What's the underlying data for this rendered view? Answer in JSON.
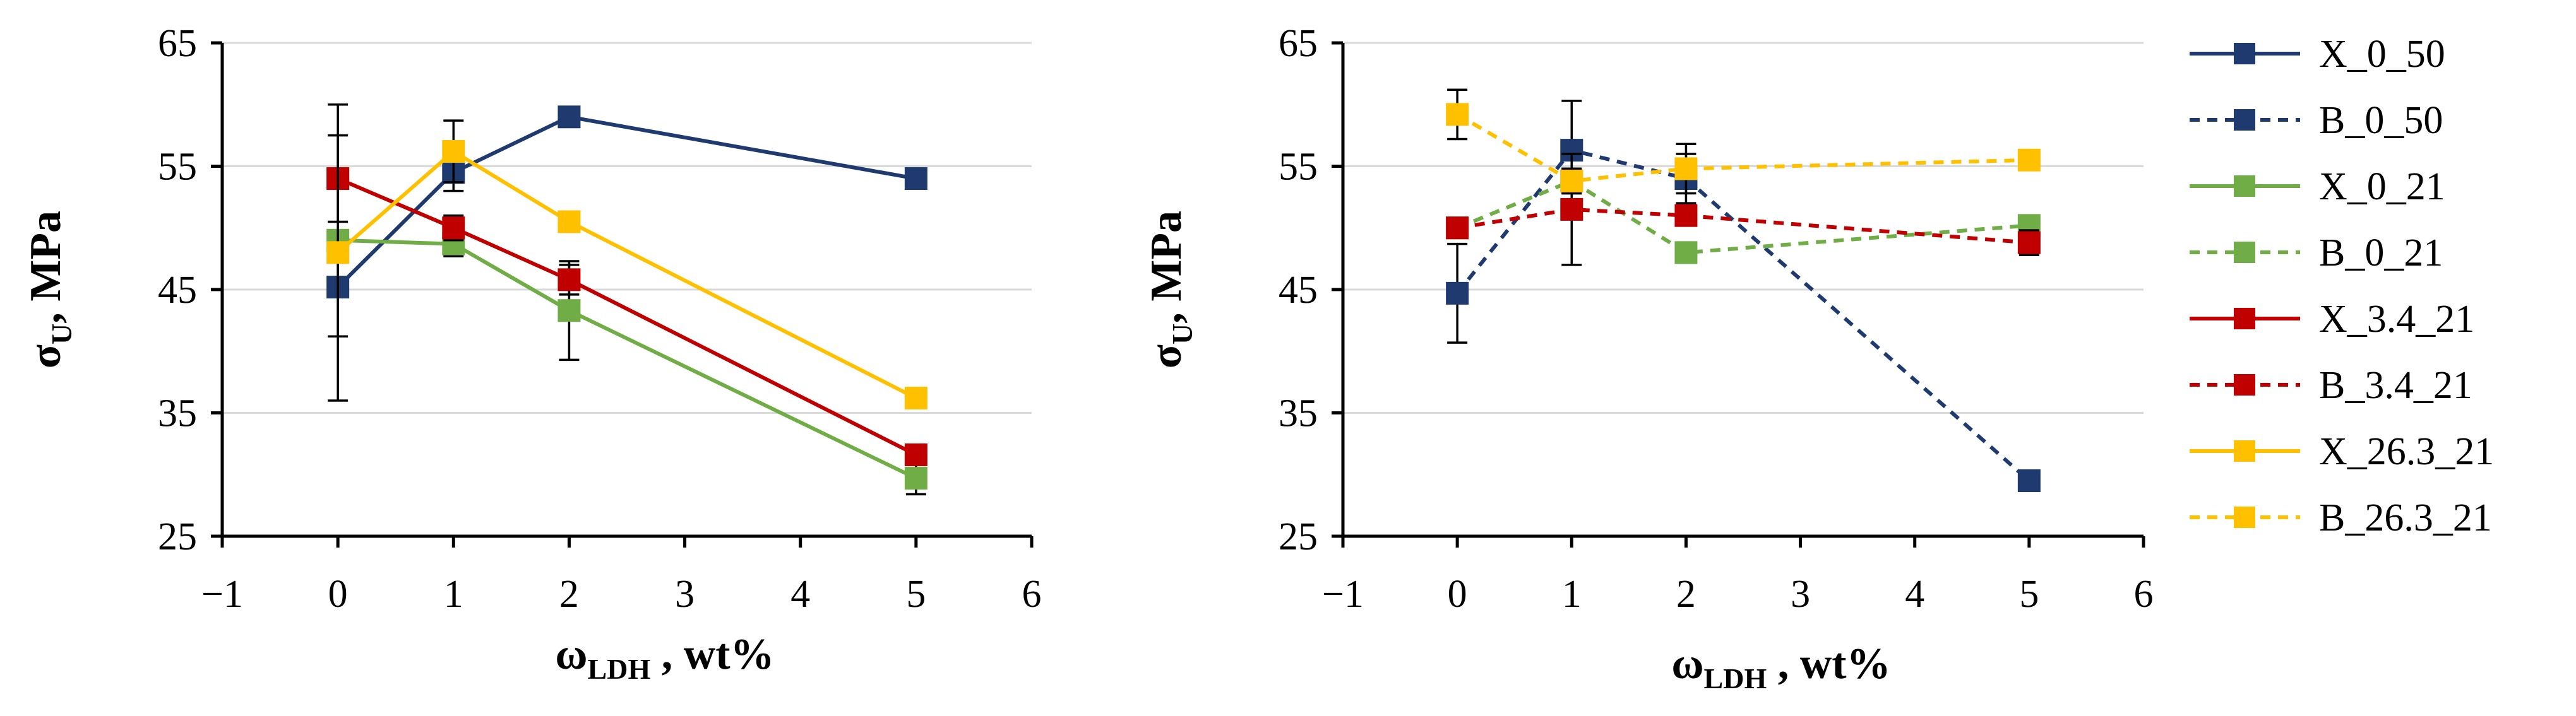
{
  "chart_data": [
    {
      "type": "line",
      "title": "",
      "xlabel": {
        "main": "ω",
        "sub": "LDH",
        "rest": " , wt%"
      },
      "ylabel": {
        "main": "σ",
        "sub": "U",
        "rest": ", MPa"
      },
      "xlim": [
        -1,
        6
      ],
      "ylim": [
        25,
        65
      ],
      "xticks": [
        -1,
        0,
        1,
        2,
        3,
        4,
        5,
        6
      ],
      "yticks": [
        25,
        35,
        45,
        55,
        65
      ],
      "grid": "horizontal",
      "series": [
        {
          "key": "X_0_50",
          "style": "solid",
          "color": "#1f3a6e",
          "x": [
            0,
            1,
            2,
            5
          ],
          "y": [
            45.2,
            54.5,
            59.0,
            54.0
          ],
          "err": [
            4,
            1.5,
            0.6,
            0.8
          ]
        },
        {
          "key": "X_0_21",
          "style": "solid",
          "color": "#70ad47",
          "x": [
            0,
            1,
            2,
            5
          ],
          "y": [
            49.0,
            48.7,
            43.3,
            29.7
          ],
          "err": [
            0.5,
            1.0,
            4.0,
            1.3
          ]
        },
        {
          "key": "X_3.4_21",
          "style": "solid",
          "color": "#c00000",
          "x": [
            0,
            1,
            2,
            5
          ],
          "y": [
            54.0,
            50.0,
            45.8,
            31.6
          ],
          "err": [
            3.5,
            1.0,
            1.2,
            0.6
          ]
        },
        {
          "key": "X_26.3_21",
          "style": "solid",
          "color": "#ffc000",
          "x": [
            0,
            1,
            2,
            5
          ],
          "y": [
            48.0,
            56.2,
            50.5,
            36.2
          ],
          "err": [
            12,
            2.5,
            0.6,
            0.6
          ]
        }
      ]
    },
    {
      "type": "line",
      "title": "",
      "xlabel": {
        "main": "ω",
        "sub": "LDH",
        "rest": " , wt%"
      },
      "ylabel": {
        "main": "σ",
        "sub": "U",
        "rest": ", MPa"
      },
      "xlim": [
        -1,
        6
      ],
      "ylim": [
        25,
        65
      ],
      "xticks": [
        -1,
        0,
        1,
        2,
        3,
        4,
        5,
        6
      ],
      "yticks": [
        25,
        35,
        45,
        55,
        65
      ],
      "grid": "horizontal",
      "legend_position": "right",
      "series": [
        {
          "key": "B_0_50",
          "style": "dashed",
          "color": "#1f3a6e",
          "x": [
            0,
            1,
            2,
            5
          ],
          "y": [
            44.7,
            56.3,
            54.0,
            29.5
          ],
          "err": [
            4,
            4,
            2,
            0.4
          ]
        },
        {
          "key": "B_0_21",
          "style": "dashed",
          "color": "#70ad47",
          "x": [
            0,
            1,
            2,
            5
          ],
          "y": [
            50.0,
            53.8,
            48.0,
            50.2
          ],
          "err": [
            0.5,
            1.0,
            0.8,
            0.6
          ]
        },
        {
          "key": "B_3.4_21",
          "style": "dashed",
          "color": "#c00000",
          "x": [
            0,
            1,
            2,
            5
          ],
          "y": [
            50.0,
            51.5,
            51.0,
            48.8
          ],
          "err": [
            0.8,
            4.5,
            0.6,
            1.0
          ]
        },
        {
          "key": "B_26.3_21",
          "style": "dashed",
          "color": "#ffc000",
          "x": [
            0,
            1,
            2,
            5
          ],
          "y": [
            59.2,
            53.8,
            54.8,
            55.5
          ],
          "err": [
            2,
            1.0,
            2.0,
            0.8
          ]
        }
      ]
    }
  ],
  "legend": {
    "items": [
      {
        "label": "X_0_50",
        "color": "#1f3a6e",
        "style": "solid"
      },
      {
        "label": "B_0_50",
        "color": "#1f3a6e",
        "style": "dashed"
      },
      {
        "label": "X_0_21",
        "color": "#70ad47",
        "style": "solid"
      },
      {
        "label": "B_0_21",
        "color": "#70ad47",
        "style": "dashed"
      },
      {
        "label": "X_3.4_21",
        "color": "#c00000",
        "style": "solid"
      },
      {
        "label": "B_3.4_21",
        "color": "#c00000",
        "style": "dashed"
      },
      {
        "label": "X_26.3_21",
        "color": "#ffc000",
        "style": "solid"
      },
      {
        "label": "B_26.3_21",
        "color": "#ffc000",
        "style": "dashed"
      }
    ]
  }
}
